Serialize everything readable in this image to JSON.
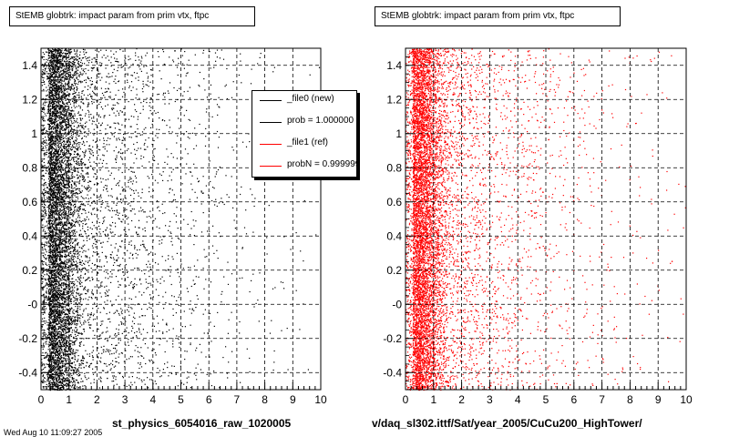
{
  "colors": {
    "series_new": "#000000",
    "series_ref": "#ff0000",
    "grid": "#000000"
  },
  "chart_data": [
    {
      "type": "scatter",
      "title": "StEMB globtrk: impact param from prim vtx, ftpc",
      "xlabel": "st_physics_6054016_raw_1020005",
      "ylabel": "",
      "xlim": [
        0,
        10
      ],
      "ylim": [
        -0.5,
        1.5
      ],
      "x_ticks": [
        "0",
        "1",
        "2",
        "3",
        "4",
        "5",
        "6",
        "7",
        "8",
        "9",
        "10"
      ],
      "y_ticks": [
        "-0.4",
        "-0.2",
        "-0",
        "0.2",
        "0.4",
        "0.6",
        "0.8",
        "1",
        "1.2",
        "1.4"
      ],
      "grid": true,
      "series": [
        {
          "name": "_file0 (new)",
          "color": "#000000"
        }
      ],
      "legend": {
        "placement": "top-right",
        "entries": [
          {
            "label": "_file0 (new)",
            "color": "#000000"
          },
          {
            "label": "prob = 1.000000",
            "color": "#000000"
          },
          {
            "label": "_file1 (ref)",
            "color": "#ff0000"
          },
          {
            "label": "probN = 0.999999",
            "color": "#ff0000"
          }
        ]
      }
    },
    {
      "type": "scatter",
      "title": "StEMB globtrk: impact param from prim vtx, ftpc",
      "xlabel": "v/daq_sl302.ittf/Sat/year_2005/CuCu200_HighTower/",
      "ylabel": "",
      "xlim": [
        0,
        10
      ],
      "ylim": [
        -0.5,
        1.5
      ],
      "x_ticks": [
        "0",
        "1",
        "2",
        "3",
        "4",
        "5",
        "6",
        "7",
        "8",
        "9",
        "10"
      ],
      "y_ticks": [
        "-0.4",
        "-0.2",
        "-0",
        "0.2",
        "0.4",
        "0.6",
        "0.8",
        "1",
        "1.2",
        "1.4"
      ],
      "grid": true,
      "series": [
        {
          "name": "_file1 (ref)",
          "color": "#ff0000"
        }
      ]
    }
  ],
  "footer": {
    "text": "Wed Aug 10 11:09:27 2005"
  }
}
